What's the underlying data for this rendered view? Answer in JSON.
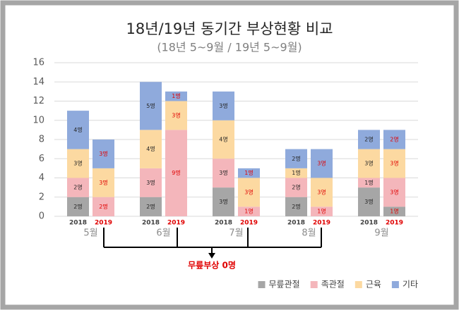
{
  "chart_data": {
    "type": "stacked_bar",
    "title": "18년/19년 동기간 부상현황 비교",
    "subtitle": "(18년 5~9월 / 19년 5~9월)",
    "categories": [
      "2018",
      "2019",
      "2018",
      "2019",
      "2018",
      "2019",
      "2018",
      "2019",
      "2018",
      "2019"
    ],
    "groups": [
      "5월",
      "6월",
      "7월",
      "8월",
      "9월"
    ],
    "series": [
      {
        "name": "무릎관절",
        "color": "#a6a6a6",
        "values": [
          2,
          0,
          2,
          0,
          3,
          0,
          2,
          0,
          3,
          1
        ],
        "value_labels": [
          "2명",
          null,
          "2명",
          null,
          "3명",
          null,
          "2명",
          null,
          "3명",
          "1명"
        ]
      },
      {
        "name": "족관절",
        "color": "#f4b6bb",
        "values": [
          2,
          2,
          3,
          9,
          3,
          1,
          2,
          1,
          1,
          3
        ],
        "value_labels": [
          "2명",
          "2명",
          "3명",
          "9명",
          "3명",
          "1명",
          "2명",
          "1명",
          "1명",
          "3명"
        ]
      },
      {
        "name": "근육",
        "color": "#fcd9a1",
        "values": [
          3,
          3,
          4,
          3,
          4,
          3,
          1,
          3,
          3,
          3
        ],
        "value_labels": [
          "3명",
          "3명",
          "4명",
          "3명",
          "4명",
          "3명",
          "1명",
          "3명",
          "3명",
          "3명"
        ]
      },
      {
        "name": "기타",
        "color": "#8faadc",
        "values": [
          4,
          3,
          5,
          1,
          3,
          1,
          2,
          3,
          2,
          2
        ],
        "value_labels": [
          "4명",
          "3명",
          "5명",
          "1명",
          "3명",
          "1명",
          "2명",
          "3명",
          "2명",
          "2명"
        ]
      }
    ],
    "annotation": "무릎부상 0명",
    "ylim": [
      0,
      16
    ],
    "yticks": [
      0,
      2,
      4,
      6,
      8,
      10,
      12,
      14,
      16
    ],
    "grid": true,
    "legend": "bottom-right"
  }
}
